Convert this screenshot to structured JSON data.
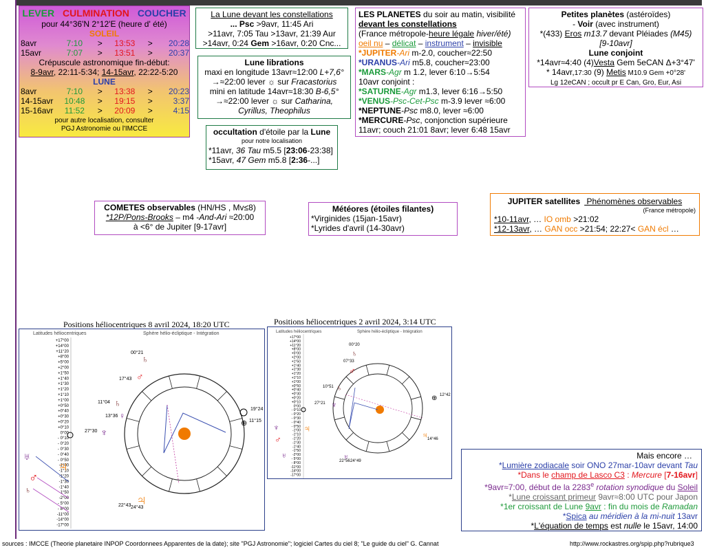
{
  "colors": {
    "accent_green": "#1e7a45",
    "red": "#e2151c",
    "blue": "#2b3fa8",
    "orange": "#f07a00",
    "purple": "#7a2a8e",
    "panel_purple": "#b14ac0",
    "yellow": "#f7e64a"
  },
  "ephem": {
    "h_lever": "LEVER",
    "h_culm": "CULMINATION",
    "h_coucher": "COUCHER",
    "location": "pour 44°36'N  2°12'E (heure d' été)",
    "soleil": "SOLEIL",
    "sun_rows": [
      {
        "d": "8avr",
        "a": "7:10",
        "s1": ">",
        "b": "13:53",
        "s2": ">",
        "c": "20:28"
      },
      {
        "d": "15avr",
        "a": "7:07",
        "s1": ">",
        "b": "13:51",
        "s2": ">",
        "c": "20:37"
      }
    ],
    "crep_label": "Crépuscule astronomique fin-début:",
    "crep_a": "8-9avr",
    "crep_a_t": ", 22:11-5:34; ",
    "crep_b": "14-15avr",
    "crep_b_t": ", 22:22-5:20",
    "lune": "LUNE",
    "moon_rows": [
      {
        "d": "8avr",
        "a": "7:10",
        "s1": ">",
        "b": "13:38",
        "s2": ">",
        "c": "20:23"
      },
      {
        "d": "14-15avr",
        "a": "10:48",
        "s1": ">",
        "b": "19:15",
        "s2": ">",
        "c": "3:37"
      },
      {
        "d": "15-16avr",
        "a": "11:52",
        "s1": ">",
        "b": "20:09",
        "s2": ">",
        "c": "4:15"
      }
    ],
    "foot1": "pour autre localisation, consulter",
    "foot2": "PGJ Astronomie ou l'IMCCE"
  },
  "constellations": {
    "title": "La Lune devant les constellations",
    "l1a": "... Psc",
    "l1b": " >9avr, 11:45 Ari",
    "l2": ">11avr, 7:05 Tau >13avr, 21:39 Aur",
    "l3a": ">14avr, 0:24 ",
    "l3b": "Gem",
    "l3c": " >16avr, 0:20 Cnc..."
  },
  "librations": {
    "title": "Lune librations",
    "l1a": "maxi en longitude 13avr≈12:00 ",
    "l1b": "L+7,6°",
    "l2a": "→≈22:00 lever ☼ sur ",
    "l2b": "Fracastorius",
    "l3a": "mini en latitude 14avr≈18:30 ",
    "l3b": "B-6,5°",
    "l4a": "→≈22:00 lever ☼ sur ",
    "l4b": "Catharina,",
    "l5": "Cyrillus, Theophilus"
  },
  "occultation": {
    "title_a": "occultation",
    "title_b": " d'étoile par la ",
    "title_c": "Lune",
    "sub": "pour notre localisation",
    "l1a": "*11avr, ",
    "l1b": "36 Tau",
    "l1c": " m5.5 [",
    "l1d": "23:06",
    "l1e": "-23:38]",
    "l2a": "*15avr, ",
    "l2b": "47 Gem",
    "l2c": " m5.8 [",
    "l2d": "2:36",
    "l2e": "-...]"
  },
  "planets": {
    "h1a": "LES PLANETES",
    "h1b": " du soir au matin, visibilité",
    "h2": "devant les constellations",
    "h3a": "(France métropole-",
    "h3b": "heure légale",
    "h3c": " hiver/été)",
    "h4a": "oeil nu",
    "h4b": " – ",
    "h4c": "délicat",
    "h4d": " – ",
    "h4e": "instrument",
    "h4f": " – ",
    "h4g": "invisible",
    "l1a": "*JUPITER",
    "l1b": "-Ari",
    "l1c": " m-2.0, coucher≈22:50",
    "l2a": "*URANUS",
    "l2b": "-Ari",
    "l2c": " m5.8, coucher≈23:00",
    "l3a": "*MARS",
    "l3b": "-Agr",
    "l3c": " m 1.2, lever 6:10→5:54",
    "l4": "10avr conjoint :",
    "l5a": "*SATURNE",
    "l5b": "-Agr",
    "l5c": " m1.3, lever 6:16→5:50",
    "l6a": "*VENUS",
    "l6b": "-Psc-Cet-Psc",
    "l6c": " m-3.9 lever ≈6:00",
    "l7a": "*NEPTUNE",
    "l7b": "-Psc",
    "l7c": " m8.0, lever ≈6:00",
    "l8a": "*MERCURE",
    "l8b": "-Psc",
    "l8c": ", conjonction supérieure",
    "l9": "11avr; couch 21:01 8avr; lever 6:48 15avr"
  },
  "petites": {
    "t1a": "Petites planètes",
    "t1b": " (astéroïdes)",
    "t2a": "- ",
    "t2b": "Voir",
    "t2c": " (avec instrument)",
    "l1a": "*(433) ",
    "l1b": "Eros",
    "l1c": " m13.7",
    "l1d": " devant Pléiades ",
    "l1e": "(M45)",
    "l2": "[9-10avr]",
    "t3": "Lune conjoint",
    "l3a": "*14avr≈4:40 (4)",
    "l3b": "Vesta",
    "l3c": " Gem 5eCAN Δ+3°47'",
    "l4a": "* 14avr,",
    "l4b": "17:30",
    "l4c": " (9) ",
    "l4d": "Metis",
    "l4e": " M10.9 Gem +0°28'",
    "l5": "Lg 12eCAN ; occult pr E Can, Gro, Eur, Asi"
  },
  "cometes": {
    "title_a": "COMETES observables",
    "title_b": " (HN/HS , Mv≤8)",
    "l1a": "*12P/Pons-Brooks",
    "l1b": " – m4 -",
    "l1c": "And-Ari",
    "l1d": " ≈20:00",
    "l2": "à <6° de Jupiter [9-17avr]"
  },
  "meteores": {
    "title": "Météores (étoiles filantes)",
    "l1": "*Virginides (15jan-15avr)",
    "l2": "*Lyrides d'avril (14-30avr)"
  },
  "jupiter": {
    "title_a": "JUPITER satellites",
    "title_b": " Phénomènes observables",
    "sub": "(France métropole)",
    "l1a": "*10-11avr",
    "l1b": ", … ",
    "l1c": "IO omb",
    "l1d": " >21:02",
    "l2a": "*12-13avr",
    "l2b": ", … ",
    "l2c": "GAN occ",
    "l2d": " >21:54; 22:27< ",
    "l2e": "GAN écl",
    "l2f": "  …"
  },
  "helio1": {
    "title": "Positions héliocentriques 8 avril 2024, 18:20 UTC",
    "left_title": "Latitudes héliocentriques",
    "right_title": "Sphère hélio-écliptique - Intégration",
    "lat_labels": [
      "+17°00",
      "+14°00",
      "+11°20",
      "+8°00",
      "+5°00",
      "+2°00",
      "+1°50",
      "+1°40",
      "+1°30",
      "+1°20",
      "+1°10",
      "+1°00",
      "+0°50",
      "+0°40",
      "+0°30",
      "+0°20",
      "+0°10",
      "0°00",
      "- 0°10",
      "- 0°20",
      "- 0°30",
      "- 0°40",
      "- 0°50",
      "-1°00",
      "-1°10",
      "-1°20",
      "-1°30",
      "-1°40",
      "-1°50",
      "-2°00",
      "- 5°00",
      "- 8°00",
      "-11°00",
      "-14°00",
      "-17°00"
    ],
    "angles": [
      "00°21",
      "17°43",
      "11°04",
      "13°36",
      "27°30",
      "19°24",
      "11°15",
      "22°43",
      "24°43"
    ]
  },
  "helio2": {
    "title": "Positions héliocentriques 2 avril  2024, 3:14 UTC",
    "left_title": "Latitudes héliocentriques",
    "right_title": "Sphère hélio-écliptique - Intégration",
    "angles": [
      "00°20",
      "07°33",
      "10°51",
      "27°21",
      "12°42",
      "14°46",
      "22°56",
      "24°49"
    ]
  },
  "encore": {
    "title": "Mais encore …",
    "l1a": "*",
    "l1b": "Lumière zodiacale",
    "l1c": " soir ONO 27mar-10avr devant ",
    "l1d": "Tau",
    "l2a": "*Dans le ",
    "l2b": "champ de Lasco C3",
    "l2c": " : ",
    "l2d": "Mercure",
    "l2e": " [",
    "l2f": "7-16avr",
    "l2g": "]",
    "l3a": "*9avr≈7:00, début de la 2283",
    "l3b": "e",
    "l3c": " rotation synodique",
    "l3d": " du ",
    "l3e": "Soleil",
    "l4a": "*",
    "l4b": "Lune croissant primeur",
    "l4c": "  9avr≈8:00 UTC pour Japon",
    "l5a": "*1er croissant de Lune ",
    "l5b": "9avr",
    "l5c": " : fin du mois de ",
    "l5d": "Ramadan",
    "l6a": "*",
    "l6b": "Spica",
    "l6c": " au méridien à la mi-nuit",
    "l6d": " 13avr",
    "l7a": "*",
    "l7b": "L'équation de temps",
    "l7c": " est ",
    "l7d": "nulle",
    "l7e": " le 15avr, 14:00"
  },
  "footer": {
    "sources": "sources : IMCCE (Theorie planetaire INPOP Coordonnees Apparentes de la date); site \"PGJ Astronomie\"; logiciel  Cartes du ciel 8; \"Le guide du ciel\" G. Cannat",
    "url": "http://www.rockastres.org/spip.php?rubrique3"
  }
}
